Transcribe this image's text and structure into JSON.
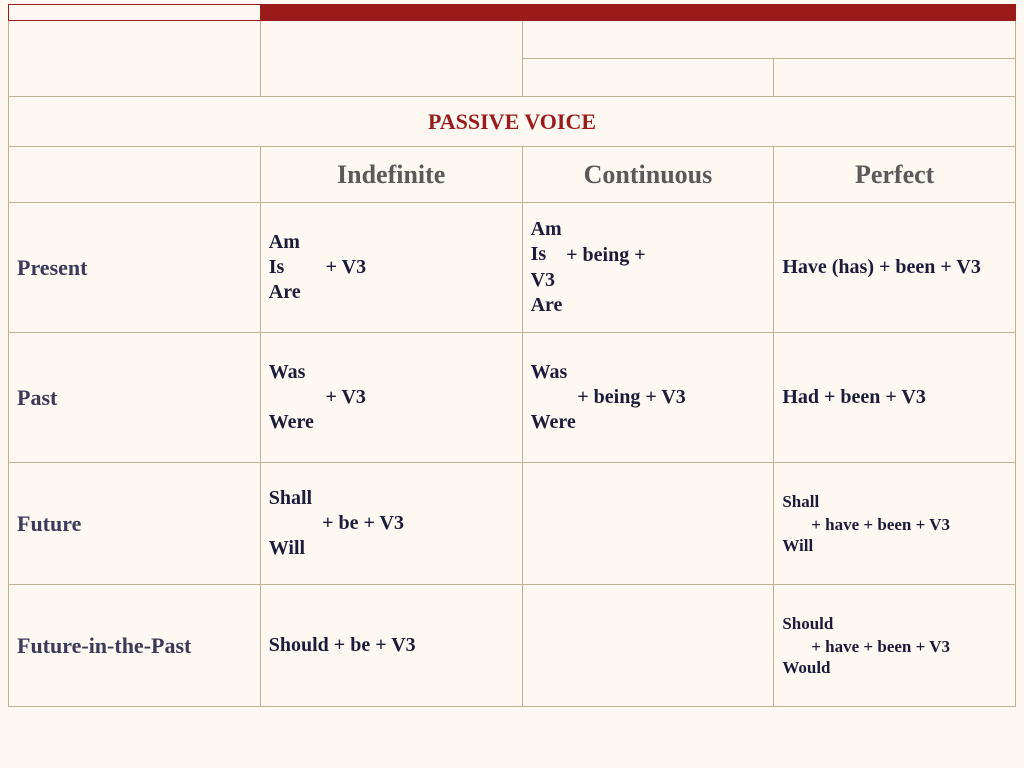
{
  "colors": {
    "accent": "#9b1b1b",
    "border": "#c2b18f",
    "bg": "#fdf8f2",
    "text_dark": "#1b1b3a",
    "header_gray": "#5a5a5a"
  },
  "title": "PASSIVE VOICE",
  "headers": {
    "indef": "Indefinite",
    "cont": "Continuous",
    "perf": "Perfect"
  },
  "rows": {
    "present": {
      "label": "Present",
      "indef": {
        "l1": "Am",
        "l2": "Is",
        "l3": "Are",
        "rest": "+ V3"
      },
      "cont": {
        "l1": "Am",
        "l2": "Is",
        "l3": "V3",
        "l4": "Are",
        "rest": "+ being  +"
      },
      "perf": {
        "text": "Have (has) + been + V3"
      }
    },
    "past": {
      "label": "Past",
      "indef": {
        "l1": "Was",
        "l2": "Were",
        "rest": "+ V3"
      },
      "cont": {
        "l1": "Was",
        "l2": "Were",
        "rest": "+ being  + V3"
      },
      "perf": {
        "text": "Had + been + V3"
      }
    },
    "future": {
      "label": "Future",
      "indef": {
        "l1": "Shall",
        "l2": "Will",
        "rest": "+ be + V3"
      },
      "cont": {
        "text": ""
      },
      "perf": {
        "l1": "Shall",
        "l2": "Will",
        "rest": "+ have + been + V3"
      }
    },
    "fip": {
      "label": "Future-in-the-Past",
      "indef": {
        "text": "Should + be + V3"
      },
      "cont": {
        "text": ""
      },
      "perf": {
        "l1": "Should",
        "l2": "Would",
        "rest": "+ have + been + V3"
      }
    }
  }
}
